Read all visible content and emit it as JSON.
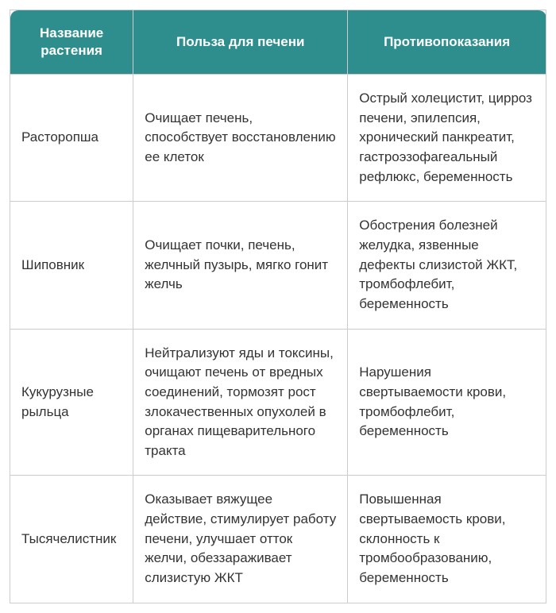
{
  "table": {
    "type": "table",
    "header_bg_color": "#2e8d8d",
    "header_text_color": "#ffffff",
    "border_color": "#cccccc",
    "cell_text_color": "#333333",
    "cell_bg_color": "#ffffff",
    "font_family": "Arial",
    "header_font_size": 17,
    "cell_font_size": 17,
    "border_radius": 10,
    "columns": [
      {
        "key": "name",
        "label": "Название растения",
        "width_pct": 23
      },
      {
        "key": "benefit",
        "label": "Польза для печени",
        "width_pct": 40
      },
      {
        "key": "contra",
        "label": "Противопоказания",
        "width_pct": 37
      }
    ],
    "rows": [
      {
        "name": "Расторопша",
        "benefit": "Очищает печень, способствует восстановлению ее клеток",
        "contra": "Острый холецистит, цирроз печени, эпилепсия, хронический панкреатит, гастроэзофагеальный рефлюкс, беременность"
      },
      {
        "name": "Шиповник",
        "benefit": "Очищает почки, печень, желчный пузырь, мягко гонит желчь",
        "contra": "Обострения болезней желудка, язвенные дефекты слизистой ЖКТ, тромбофлебит, беременность"
      },
      {
        "name": "Кукурузные рыльца",
        "benefit": "Нейтрализуют яды и токсины, очищают печень от вредных соединений, тормозят рост злокачественных опухолей в органах пищеварительного тракта",
        "contra": "Нарушения свертываемости крови, тромбофлебит, беременность"
      },
      {
        "name": "Тысячелистник",
        "benefit": "Оказывает вяжущее действие, стимулирует работу печени, улучшает отток желчи, обеззараживает слизистую ЖКТ",
        "contra": "Повышенная свертываемость крови, склонность к тромбообразованию, беременность"
      }
    ]
  }
}
